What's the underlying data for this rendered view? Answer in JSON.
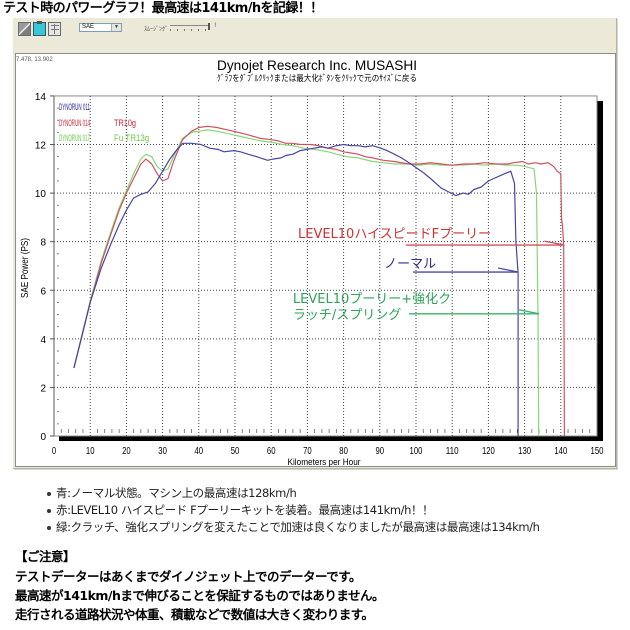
{
  "page": {
    "title": "テスト時のパワーグラフ！最高速は141km/hを記録！！"
  },
  "toolbar": {
    "icons": [
      "magnify-icon",
      "clipboard-icon",
      "grid-icon"
    ],
    "dropdown_value": "SAE",
    "dropdown_arrow": "▼",
    "smoothing_label": "ｽﾑｰｼﾞﾝｸﾞ",
    "slider_mark": "!"
  },
  "chart_panel": {
    "cursor_coords": "7.478, 13.902",
    "title": "Dynojet Research Inc. MUSASHI",
    "subtitle": "ｸﾞﾗﾌをﾀﾞﾌﾞﾙｸﾘｯｸまたは最大化ﾎﾞﾀﾝをｸﾘｯｸで元のｻｲｽﾞに戻る"
  },
  "chart_data": {
    "type": "line",
    "title": "Dynojet Research Inc. MUSASHI",
    "subtitle": "ｸﾞﾗﾌをﾀﾞﾌﾞﾙｸﾘｯｸまたは最大化ﾎﾞﾀﾝをｸﾘｯｸで元のｻｲｽﾞに戻る",
    "xlabel": "Kilometers per Hour",
    "ylabel": "SAE Power (PS)",
    "xlim": [
      0,
      150
    ],
    "ylim": [
      0,
      14
    ],
    "xticks": [
      0,
      10,
      20,
      30,
      40,
      50,
      60,
      70,
      80,
      90,
      100,
      110,
      120,
      130,
      140,
      150
    ],
    "yticks": [
      0,
      2,
      4,
      6,
      8,
      10,
      12,
      14
    ],
    "grid": true,
    "legend_position": "top-left",
    "series": [
      {
        "name": "DYNORUN 011",
        "note": "",
        "color": "#4646a6",
        "label_color": "#1f1f99",
        "points": [
          [
            5.5,
            2.8
          ],
          [
            8,
            4.3
          ],
          [
            10,
            5.5
          ],
          [
            13,
            6.9
          ],
          [
            15.7,
            7.9
          ],
          [
            18,
            8.7
          ],
          [
            20,
            9.3
          ],
          [
            22,
            9.8
          ],
          [
            24,
            9.95
          ],
          [
            26,
            10.05
          ],
          [
            28,
            10.4
          ],
          [
            30,
            10.9
          ],
          [
            32,
            11.4
          ],
          [
            34,
            11.8
          ],
          [
            35.6,
            12.05
          ],
          [
            38,
            12.05
          ],
          [
            40.6,
            12.0
          ],
          [
            43,
            11.85
          ],
          [
            45.3,
            11.8
          ],
          [
            47,
            11.7
          ],
          [
            49.7,
            11.75
          ],
          [
            51.5,
            11.7
          ],
          [
            53.6,
            11.6
          ],
          [
            56,
            11.5
          ],
          [
            59,
            11.35
          ],
          [
            60.5,
            11.4
          ],
          [
            62.7,
            11.45
          ],
          [
            64,
            11.55
          ],
          [
            66,
            11.6
          ],
          [
            68,
            11.75
          ],
          [
            71.8,
            11.85
          ],
          [
            74,
            11.9
          ],
          [
            75.7,
            11.85
          ],
          [
            78,
            11.95
          ],
          [
            80,
            12.0
          ],
          [
            82,
            11.95
          ],
          [
            84,
            11.95
          ],
          [
            86,
            11.9
          ],
          [
            88,
            11.95
          ],
          [
            90.3,
            11.85
          ],
          [
            92,
            11.75
          ],
          [
            94,
            11.6
          ],
          [
            96,
            11.45
          ],
          [
            98.6,
            11.2
          ],
          [
            100,
            11.05
          ],
          [
            102,
            10.85
          ],
          [
            104,
            10.6
          ],
          [
            107,
            10.2
          ],
          [
            109,
            10.05
          ],
          [
            111,
            9.9
          ],
          [
            113,
            10.0
          ],
          [
            114.5,
            9.95
          ],
          [
            116,
            10.15
          ],
          [
            118,
            10.25
          ],
          [
            120,
            10.5
          ],
          [
            121.5,
            10.6
          ],
          [
            123,
            10.7
          ],
          [
            124.5,
            10.8
          ],
          [
            126.2,
            10.9
          ],
          [
            127.2,
            10.4
          ],
          [
            127.6,
            8.0
          ],
          [
            128.2,
            6.7
          ],
          [
            128.2,
            0
          ]
        ]
      },
      {
        "name": "DYNORUN 014",
        "note": "TR10g",
        "color": "#d2505e",
        "label_color": "#cc2233",
        "points": [
          [
            5.5,
            2.8
          ],
          [
            8,
            4.3
          ],
          [
            10,
            5.5
          ],
          [
            13,
            7.1
          ],
          [
            15.7,
            8.3
          ],
          [
            18,
            9.3
          ],
          [
            20,
            10.0
          ],
          [
            22,
            10.6
          ],
          [
            24,
            11.2
          ],
          [
            25.4,
            11.4
          ],
          [
            27,
            11.2
          ],
          [
            28.5,
            10.8
          ],
          [
            30,
            10.5
          ],
          [
            31.5,
            10.6
          ],
          [
            33,
            11.3
          ],
          [
            35.5,
            12.2
          ],
          [
            38,
            12.55
          ],
          [
            40,
            12.7
          ],
          [
            42.5,
            12.75
          ],
          [
            45,
            12.7
          ],
          [
            48,
            12.6
          ],
          [
            51,
            12.5
          ],
          [
            53.6,
            12.4
          ],
          [
            57,
            12.25
          ],
          [
            60,
            12.2
          ],
          [
            62,
            12.15
          ],
          [
            64,
            12.05
          ],
          [
            66,
            12.05
          ],
          [
            68,
            12.0
          ],
          [
            71,
            12.0
          ],
          [
            73,
            11.95
          ],
          [
            75.7,
            11.85
          ],
          [
            78,
            11.8
          ],
          [
            80,
            11.7
          ],
          [
            82,
            11.65
          ],
          [
            84,
            11.6
          ],
          [
            86,
            11.5
          ],
          [
            88,
            11.45
          ],
          [
            91,
            11.35
          ],
          [
            94,
            11.3
          ],
          [
            98,
            11.2
          ],
          [
            101,
            11.2
          ],
          [
            104,
            11.25
          ],
          [
            107,
            11.2
          ],
          [
            110,
            11.15
          ],
          [
            113,
            11.2
          ],
          [
            116,
            11.2
          ],
          [
            119,
            11.25
          ],
          [
            122,
            11.2
          ],
          [
            125.4,
            11.2
          ],
          [
            127,
            11.25
          ],
          [
            129.5,
            11.3
          ],
          [
            131,
            11.2
          ],
          [
            133,
            11.25
          ],
          [
            134.5,
            11.2
          ],
          [
            136.5,
            11.25
          ],
          [
            138,
            11.1
          ],
          [
            139,
            10.9
          ],
          [
            140,
            10.8
          ],
          [
            140.2,
            9.0
          ],
          [
            140.5,
            8.6
          ],
          [
            140.8,
            7.8
          ],
          [
            141,
            0
          ]
        ]
      },
      {
        "name": "DYNORUN 017",
        "note": "Fu TR13g",
        "color": "#86d877",
        "label_color": "#66cc44",
        "points": [
          [
            5.5,
            2.8
          ],
          [
            8,
            4.35
          ],
          [
            10,
            5.55
          ],
          [
            13,
            7.2
          ],
          [
            15.7,
            8.4
          ],
          [
            18,
            9.4
          ],
          [
            20,
            10.1
          ],
          [
            22,
            10.8
          ],
          [
            24,
            11.4
          ],
          [
            25.4,
            11.6
          ],
          [
            27,
            11.5
          ],
          [
            28.5,
            11.1
          ],
          [
            30,
            10.9
          ],
          [
            31.5,
            11.0
          ],
          [
            33,
            11.5
          ],
          [
            35.5,
            12.25
          ],
          [
            38,
            12.5
          ],
          [
            40,
            12.55
          ],
          [
            42.5,
            12.6
          ],
          [
            45,
            12.55
          ],
          [
            48,
            12.45
          ],
          [
            51,
            12.35
          ],
          [
            54,
            12.25
          ],
          [
            57,
            12.15
          ],
          [
            60,
            12.1
          ],
          [
            63,
            12.0
          ],
          [
            66,
            11.95
          ],
          [
            69,
            11.85
          ],
          [
            72,
            11.8
          ],
          [
            75.7,
            11.7
          ],
          [
            78,
            11.6
          ],
          [
            81,
            11.5
          ],
          [
            84,
            11.45
          ],
          [
            88,
            11.3
          ],
          [
            91,
            11.25
          ],
          [
            94,
            11.2
          ],
          [
            98,
            11.2
          ],
          [
            101,
            11.15
          ],
          [
            104,
            11.2
          ],
          [
            107,
            11.15
          ],
          [
            110,
            11.15
          ],
          [
            113,
            11.15
          ],
          [
            116,
            11.2
          ],
          [
            119,
            11.15
          ],
          [
            122,
            11.2
          ],
          [
            125,
            11.15
          ],
          [
            128,
            11.15
          ],
          [
            130,
            11.1
          ],
          [
            132.6,
            11.0
          ],
          [
            133.3,
            10.0
          ],
          [
            133.7,
            5.0
          ],
          [
            133.9,
            0
          ]
        ]
      }
    ],
    "annotations": [
      {
        "lines": [
          "LEVEL10ハイスピードFプーリー"
        ],
        "color": "#cc3333",
        "text_at": [
          67.4,
          8.15
        ],
        "arrow_from": [
          97.2,
          7.86
        ],
        "arrow_to": [
          141.0,
          7.86
        ],
        "arrow_color": "#d0505a"
      },
      {
        "lines": [
          "ノーマル"
        ],
        "color": "#2e2e8f",
        "text_at": [
          91.2,
          6.92
        ],
        "arrow_from": [
          99.2,
          6.75
        ],
        "arrow_to": [
          128.2,
          6.75
        ],
        "arrow_color": "#4848a8"
      },
      {
        "lines": [
          "LEVEL10プーリー+強化ク",
          "ラッチ/スプリング"
        ],
        "color": "#2fa35a",
        "text_at": [
          66.0,
          5.48
        ],
        "arrow_from": [
          98.1,
          5.03
        ],
        "arrow_to": [
          134.0,
          5.03
        ],
        "arrow_color": "#3cb371"
      }
    ]
  },
  "notes": {
    "bullets": [
      "青:ノーマル状態。マシン上の最高速は128km/h",
      "赤:LEVEL10 ハイスピード Fプーリーキットを装着。最高速は141km/h！！",
      "緑:クラッチ、強化スプリングを変えたことで加速は良くなりましたが最高速は最高速は134km/h"
    ],
    "caution_heading": "【ご注意】",
    "caution_lines": [
      "テストデーターはあくまでダイノジェット上でのデーターです。",
      "最高速が141km/hまで伸びることを保証するものではありません。",
      "走行される道路状況や体重、積載などで数値は大きく変わります。"
    ]
  }
}
